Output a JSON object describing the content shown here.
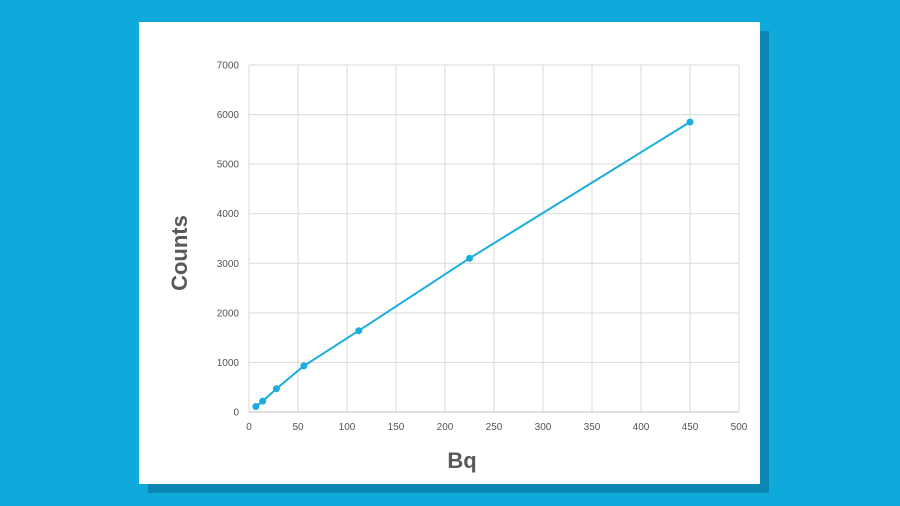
{
  "chart_data": {
    "type": "line",
    "xlabel": "Bq",
    "ylabel": "Counts",
    "xlim": [
      0,
      500
    ],
    "ylim": [
      0,
      7000
    ],
    "xticks": [
      0,
      50,
      100,
      150,
      200,
      250,
      300,
      350,
      400,
      450,
      500
    ],
    "yticks": [
      0,
      1000,
      2000,
      3000,
      4000,
      5000,
      6000,
      7000
    ],
    "grid": true,
    "legend": "none",
    "series": [
      {
        "color": "#1aaedc",
        "x": [
          7,
          14,
          28,
          56,
          112,
          225,
          450
        ],
        "y": [
          110,
          220,
          470,
          930,
          1640,
          3100,
          5850
        ]
      }
    ]
  },
  "colors": {
    "background": "#0fa9dc",
    "card": "#ffffff",
    "card_shadow": "#0b86b2",
    "gridline": "#d9d9d9",
    "line": "#1aaedc"
  }
}
